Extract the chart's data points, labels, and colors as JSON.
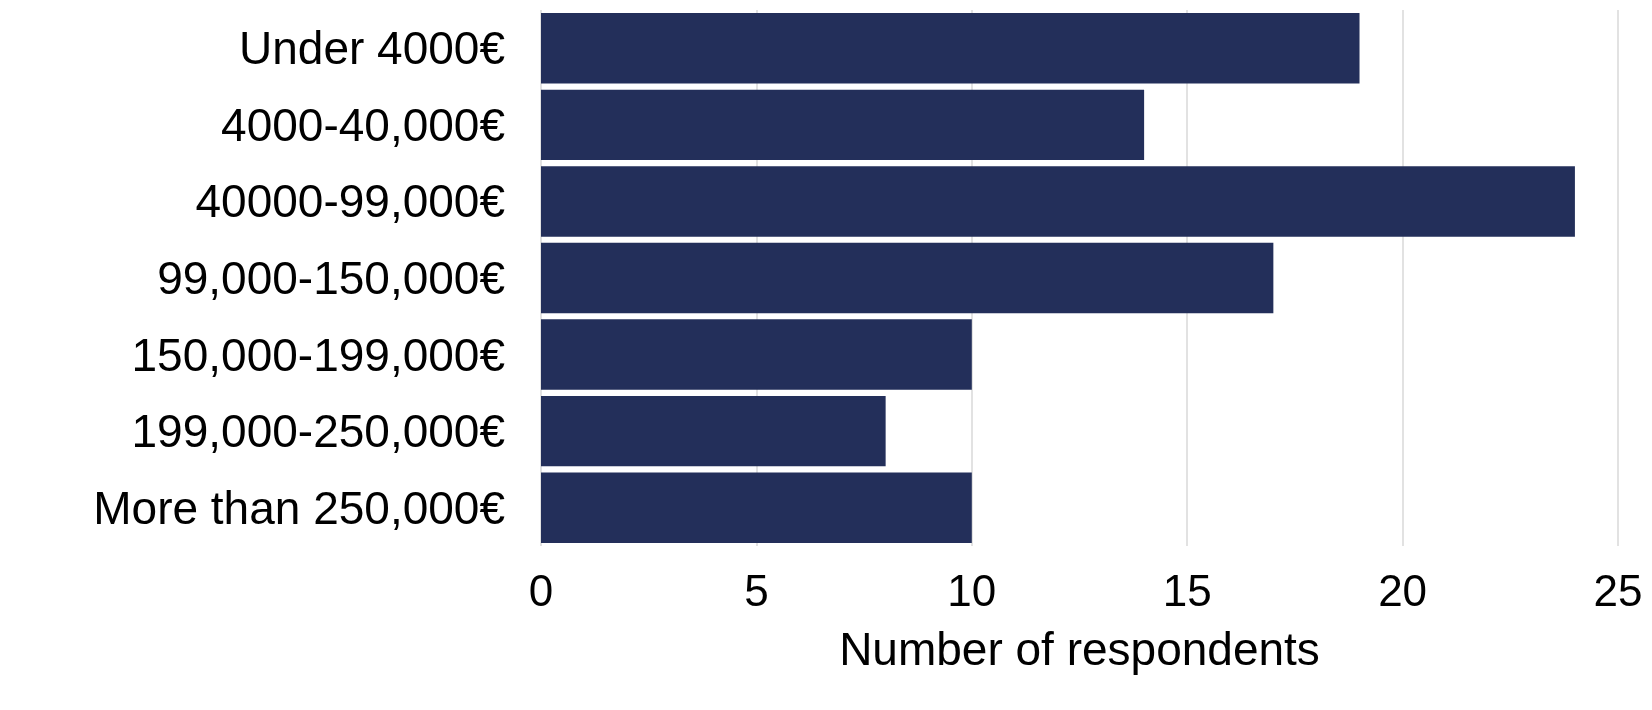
{
  "chart_data": {
    "type": "bar",
    "orientation": "horizontal",
    "categories": [
      "Under 4000€",
      "4000-40,000€",
      "40000-99,000€",
      "99,000-150,000€",
      "150,000-199,000€",
      "199,000-250,000€",
      "More than 250,000€"
    ],
    "values": [
      19,
      14,
      24,
      17,
      10,
      8,
      10
    ],
    "color": "#232f5a",
    "xlabel": "Number of respondents",
    "xlim": [
      0,
      25
    ],
    "xticks": [
      0,
      5,
      10,
      15,
      20,
      25
    ],
    "grid": "x"
  }
}
